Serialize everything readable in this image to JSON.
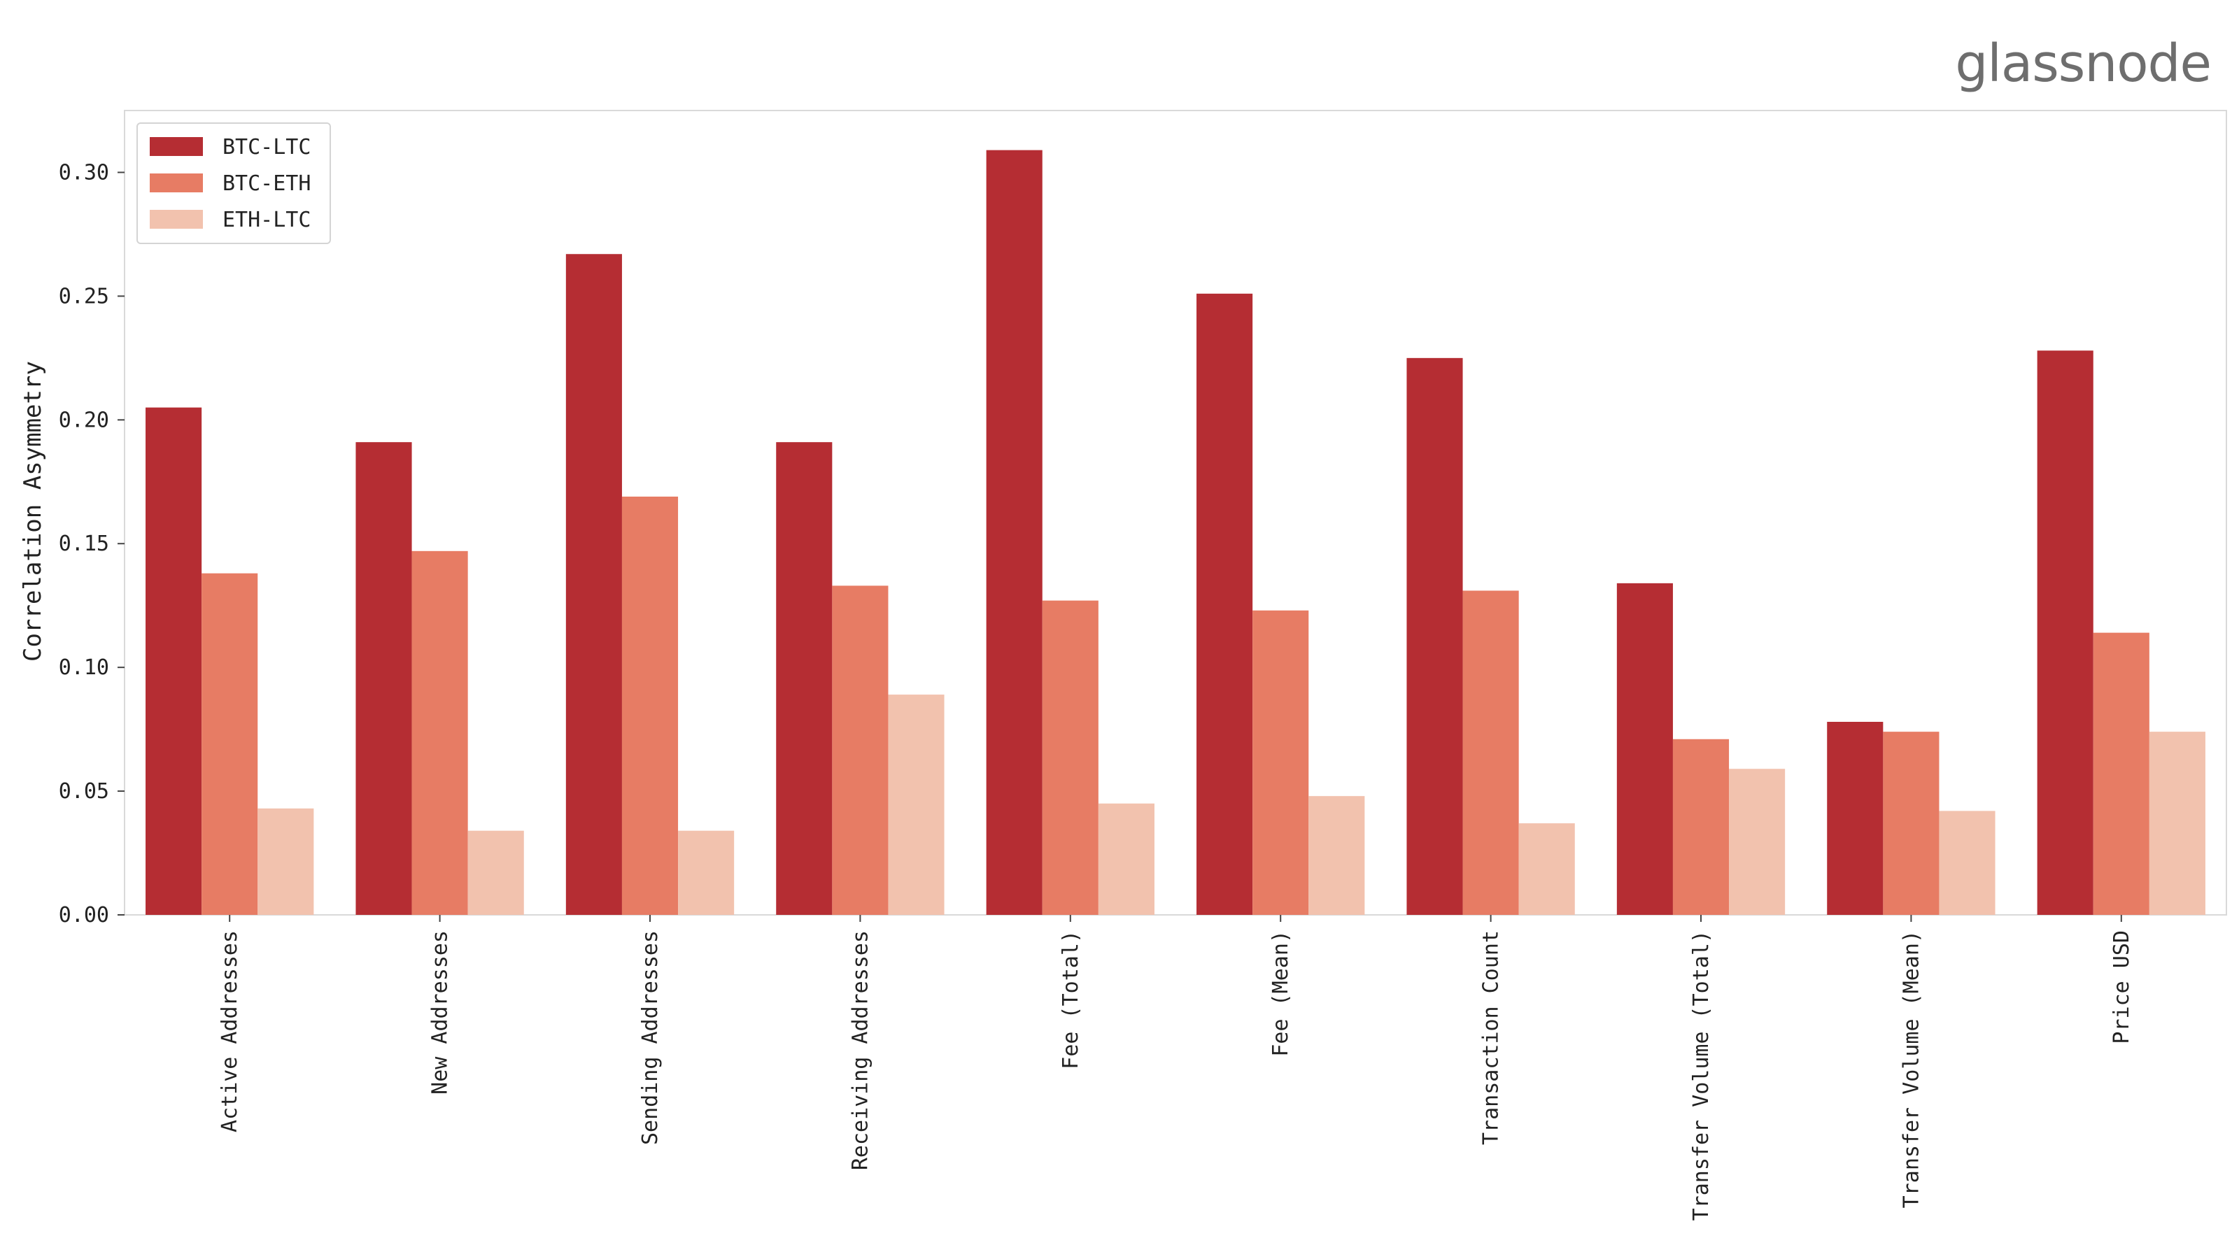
{
  "brand": {
    "logo_text": "glassnode"
  },
  "chart_data": {
    "type": "bar",
    "categories": [
      "Active Addresses",
      "New Addresses",
      "Sending Addresses",
      "Receiving Addresses",
      "Fee (Total)",
      "Fee (Mean)",
      "Transaction Count",
      "Transfer Volume (Total)",
      "Transfer Volume (Mean)",
      "Price USD"
    ],
    "series": [
      {
        "name": "BTC-LTC",
        "color": "#b52d33",
        "values": [
          0.205,
          0.191,
          0.267,
          0.191,
          0.309,
          0.251,
          0.225,
          0.134,
          0.078,
          0.228
        ]
      },
      {
        "name": "BTC-ETH",
        "color": "#e77c64",
        "values": [
          0.138,
          0.147,
          0.169,
          0.133,
          0.127,
          0.123,
          0.131,
          0.071,
          0.074,
          0.114
        ]
      },
      {
        "name": "ETH-LTC",
        "color": "#f2c2ae",
        "values": [
          0.043,
          0.034,
          0.034,
          0.089,
          0.045,
          0.048,
          0.037,
          0.059,
          0.042,
          0.074
        ]
      }
    ],
    "ylabel": "Correlation Asymmetry",
    "xlabel": "",
    "ylim": [
      0,
      0.325
    ],
    "yticks": [
      0.0,
      0.05,
      0.1,
      0.15,
      0.2,
      0.25,
      0.3
    ],
    "ytick_labels": [
      "0.00",
      "0.05",
      "0.10",
      "0.15",
      "0.20",
      "0.25",
      "0.30"
    ],
    "grid": false,
    "legend_position": "top-left"
  }
}
